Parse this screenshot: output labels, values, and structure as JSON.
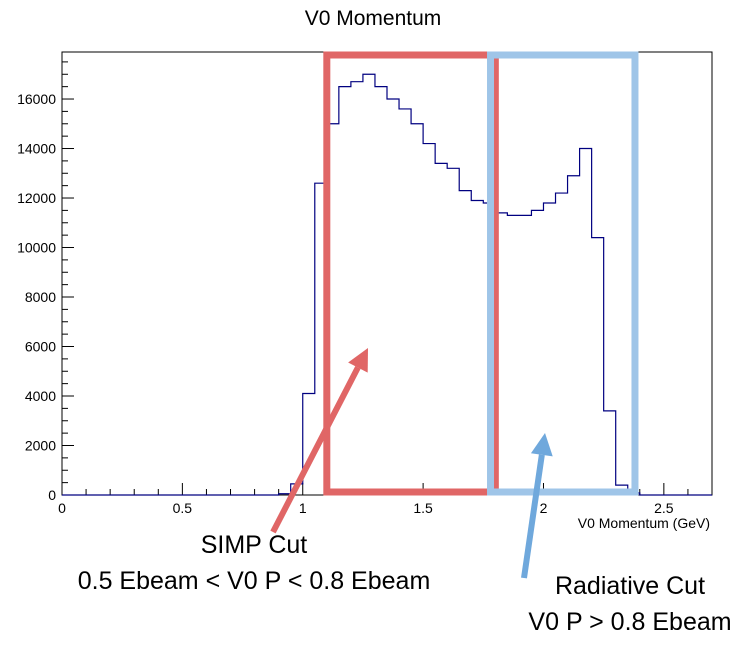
{
  "chart_data": {
    "type": "histogram",
    "title": "V0 Momentum",
    "xlabel": "V0 Momentum (GeV)",
    "ylabel": "",
    "xlim": [
      0,
      2.7
    ],
    "ylim": [
      0,
      17900
    ],
    "grid": false,
    "x_ticks": [
      "0",
      "0.5",
      "1",
      "1.5",
      "2",
      "2.5"
    ],
    "y_ticks": [
      "0",
      "2000",
      "4000",
      "6000",
      "8000",
      "10000",
      "12000",
      "14000",
      "16000"
    ],
    "bin_width": 0.05,
    "bins_start": 0.9,
    "values": [
      50,
      450,
      4100,
      12600,
      15000,
      16500,
      16700,
      17000,
      16500,
      16000,
      15600,
      15000,
      14200,
      13400,
      13200,
      12300,
      11900,
      11800,
      11400,
      11300,
      11300,
      11500,
      11800,
      12200,
      12900,
      14000,
      10400,
      3400,
      400,
      80
    ],
    "line_color": "#000080",
    "series": [
      {
        "values": [
          50,
          450,
          4100,
          12600,
          15000,
          16500,
          16700,
          17000,
          16500,
          16000,
          15600,
          15000,
          14200,
          13400,
          13200,
          12300,
          11900,
          11800,
          11400,
          11300,
          11300,
          11500,
          11800,
          12200,
          12900,
          14000,
          10400,
          3400,
          400,
          80
        ]
      }
    ]
  },
  "annotations": {
    "simp": {
      "line1": "SIMP Cut",
      "line2": "0.5 Ebeam < V0 P < 0.8 Ebeam",
      "color": "#e06666",
      "x_range": [
        1.1,
        1.8
      ]
    },
    "radiative": {
      "line1": "Radiative Cut",
      "line2": "V0 P > 0.8 Ebeam",
      "color": "#9fc5e8",
      "arrow_color": "#6fa8dc",
      "x_range": [
        1.78,
        2.38
      ]
    }
  }
}
